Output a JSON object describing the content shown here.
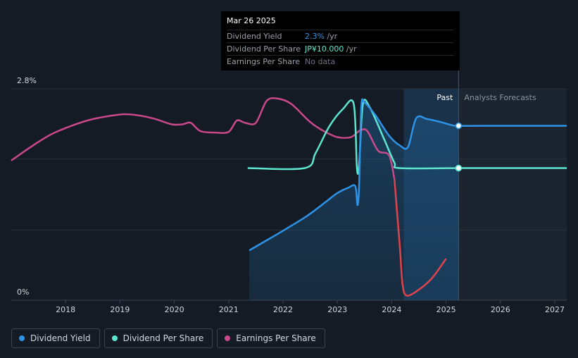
{
  "tooltip": {
    "date": "Mar 26 2025",
    "rows": [
      {
        "label": "Dividend Yield",
        "value": "2.3%",
        "unit": " /yr",
        "color": "#2e93e6"
      },
      {
        "label": "Dividend Per Share",
        "value": "JP¥10.000",
        "unit": " /yr",
        "color": "#5ce6cf"
      },
      {
        "label": "Earnings Per Share",
        "value": "No data",
        "unit": "",
        "color": "#6b7280"
      }
    ]
  },
  "chart_data": {
    "type": "line",
    "ylabel_top": "2.8%",
    "ylabel_bottom": "0%",
    "ylim": [
      0,
      2.8
    ],
    "xlim": [
      2017.0,
      2027.22
    ],
    "x_ticks": [
      "2018",
      "2019",
      "2020",
      "2021",
      "2022",
      "2023",
      "2024",
      "2025",
      "2026",
      "2027"
    ],
    "past_label": "Past",
    "forecast_label": "Analysts Forecasts",
    "forecast_start": 2025.23,
    "shaded_start": 2024.22,
    "series": [
      {
        "name": "Dividend Yield",
        "color": "#2e93e6",
        "points": [
          [
            2021.38,
            0.66
          ],
          [
            2022.0,
            0.92
          ],
          [
            2022.45,
            1.12
          ],
          [
            2022.8,
            1.31
          ],
          [
            2023.0,
            1.42
          ],
          [
            2023.2,
            1.49
          ],
          [
            2023.33,
            1.51
          ],
          [
            2023.37,
            1.26
          ],
          [
            2023.4,
            1.52
          ],
          [
            2023.44,
            2.56
          ],
          [
            2023.5,
            2.62
          ],
          [
            2023.7,
            2.45
          ],
          [
            2023.95,
            2.18
          ],
          [
            2024.15,
            2.05
          ],
          [
            2024.3,
            2.03
          ],
          [
            2024.45,
            2.41
          ],
          [
            2024.65,
            2.4
          ],
          [
            2024.9,
            2.36
          ],
          [
            2025.1,
            2.32
          ],
          [
            2025.23,
            2.31
          ],
          [
            2026.0,
            2.31
          ],
          [
            2027.22,
            2.31
          ]
        ]
      },
      {
        "name": "Dividend Per Share",
        "color": "#5ce6cf",
        "points": [
          [
            2021.35,
            1.75
          ],
          [
            2022.4,
            1.75
          ],
          [
            2022.6,
            1.95
          ],
          [
            2022.85,
            2.3
          ],
          [
            2023.1,
            2.53
          ],
          [
            2023.3,
            2.6
          ],
          [
            2023.36,
            1.75
          ],
          [
            2023.4,
            1.8
          ],
          [
            2023.47,
            2.6
          ],
          [
            2023.6,
            2.55
          ],
          [
            2023.85,
            2.15
          ],
          [
            2024.05,
            1.82
          ],
          [
            2024.15,
            1.75
          ],
          [
            2025.23,
            1.75
          ],
          [
            2026.0,
            1.75
          ],
          [
            2027.22,
            1.75
          ]
        ]
      },
      {
        "name": "Earnings Per Share",
        "color": "#c9498a",
        "points": [
          [
            2017.0,
            1.85
          ],
          [
            2017.4,
            2.05
          ],
          [
            2017.8,
            2.22
          ],
          [
            2018.4,
            2.38
          ],
          [
            2018.9,
            2.45
          ],
          [
            2019.2,
            2.46
          ],
          [
            2019.6,
            2.41
          ],
          [
            2019.95,
            2.33
          ],
          [
            2020.15,
            2.33
          ],
          [
            2020.3,
            2.35
          ],
          [
            2020.48,
            2.24
          ],
          [
            2020.75,
            2.22
          ],
          [
            2021.0,
            2.23
          ],
          [
            2021.15,
            2.38
          ],
          [
            2021.3,
            2.35
          ],
          [
            2021.5,
            2.35
          ],
          [
            2021.7,
            2.64
          ],
          [
            2021.9,
            2.67
          ],
          [
            2022.15,
            2.6
          ],
          [
            2022.5,
            2.36
          ],
          [
            2022.75,
            2.24
          ],
          [
            2023.0,
            2.16
          ],
          [
            2023.25,
            2.16
          ],
          [
            2023.42,
            2.25
          ],
          [
            2023.55,
            2.24
          ],
          [
            2023.75,
            1.98
          ],
          [
            2023.95,
            1.92
          ],
          [
            2024.05,
            1.6
          ],
          [
            2024.15,
            0.7
          ],
          [
            2024.2,
            0.2
          ],
          [
            2024.28,
            0.06
          ],
          [
            2024.5,
            0.14
          ],
          [
            2024.75,
            0.3
          ],
          [
            2025.0,
            0.55
          ]
        ]
      }
    ]
  },
  "legend": {
    "items": [
      {
        "label": "Dividend Yield",
        "color": "#2e93e6"
      },
      {
        "label": "Dividend Per Share",
        "color": "#5ce6cf"
      },
      {
        "label": "Earnings Per Share",
        "color": "#c9498a"
      }
    ]
  }
}
